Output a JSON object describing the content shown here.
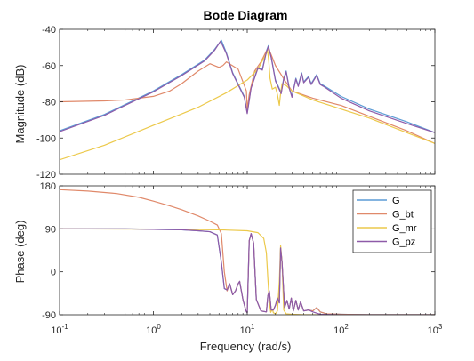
{
  "chart_data": {
    "type": "line",
    "title": "Bode Diagram",
    "xlabel": "Frequency  (rad/s)",
    "x_scale": "log",
    "xlim": [
      0.1,
      1000
    ],
    "x_ticks": [
      {
        "value": 0.1,
        "base": "10",
        "exp": "-1"
      },
      {
        "value": 1,
        "base": "10",
        "exp": "0"
      },
      {
        "value": 10,
        "base": "10",
        "exp": "1"
      },
      {
        "value": 100,
        "base": "10",
        "exp": "2"
      },
      {
        "value": 1000,
        "base": "10",
        "exp": "3"
      }
    ],
    "grid": false,
    "legend": "top-right (phase panel)",
    "series": [
      {
        "name": "G",
        "color": "#5b9bd5"
      },
      {
        "name": "G_bt",
        "color": "#e0896a"
      },
      {
        "name": "G_mr",
        "color": "#ecc94b"
      },
      {
        "name": "G_pz",
        "color": "#8e5aa8"
      }
    ],
    "panels": [
      {
        "id": "magnitude",
        "ylabel": "Magnitude (dB)",
        "ylim": [
          -120,
          -40
        ],
        "y_ticks": [
          -120,
          -100,
          -80,
          -60,
          -40
        ],
        "series": [
          {
            "name": "G",
            "x": [
              0.1,
              0.3,
              1,
              2,
              3.5,
              4.5,
              5.3,
              6,
              7,
              9.3,
              10,
              11,
              13,
              14.5,
              16,
              16.8,
              18,
              20,
              23,
              24.5,
              26,
              28,
              30,
              33,
              35,
              38,
              40,
              45,
              48,
              55,
              60,
              65,
              100,
              200,
              500,
              1000
            ],
            "y": [
              -96,
              -87,
              -74,
              -65,
              -57,
              -51,
              -46,
              -53,
              -64,
              -77,
              -86,
              -72,
              -61,
              -62,
              -52,
              -49,
              -55,
              -68,
              -75,
              -67,
              -63,
              -72,
              -77,
              -67,
              -71,
              -64,
              -69,
              -66,
              -70,
              -65,
              -70,
              -71,
              -77,
              -84,
              -91,
              -97
            ]
          },
          {
            "name": "G_bt",
            "x": [
              0.1,
              0.3,
              0.5,
              1,
              1.5,
              2,
              3,
              4,
              5,
              5.5,
              6,
              8,
              9,
              9.8,
              10,
              10.5,
              12,
              14,
              16,
              17,
              18,
              20,
              25,
              30,
              50,
              100,
              200,
              500,
              1000
            ],
            "y": [
              -80,
              -79.5,
              -79,
              -77,
              -74,
              -70,
              -63,
              -59,
              -61,
              -60,
              -58,
              -62,
              -69,
              -74,
              -84,
              -76,
              -63,
              -58,
              -52,
              -51,
              -54,
              -60,
              -68,
              -74,
              -78,
              -82,
              -88,
              -96,
              -103
            ]
          },
          {
            "name": "G_mr",
            "x": [
              0.1,
              0.3,
              1,
              3,
              6,
              10,
              13,
              15,
              16.5,
              17,
              17.5,
              18.5,
              20,
              21,
              22,
              22.5,
              23.5,
              26,
              30,
              50,
              100,
              200,
              500,
              1000
            ],
            "y": [
              -112,
              -104,
              -93,
              -83,
              -75,
              -68,
              -62,
              -56,
              -52,
              -58,
              -67,
              -73,
              -72,
              -76,
              -82,
              -77,
              -70,
              -71,
              -74,
              -79,
              -84,
              -89,
              -97,
              -103
            ]
          },
          {
            "name": "G_pz",
            "x": [
              0.1,
              0.3,
              1,
              2,
              3.5,
              4.5,
              5.2,
              6,
              7,
              9.3,
              10,
              11,
              13,
              14.5,
              16,
              16.8,
              18,
              20,
              23,
              24.5,
              26,
              28,
              30,
              33,
              35,
              38,
              40,
              45,
              48,
              55,
              60,
              65,
              100,
              200,
              500,
              1000
            ],
            "y": [
              -96.5,
              -87.5,
              -74.5,
              -65.5,
              -57.5,
              -51.5,
              -46.5,
              -53.5,
              -64.5,
              -77.5,
              -86.5,
              -72.5,
              -61.5,
              -62.5,
              -52.5,
              -49.5,
              -55.5,
              -68.5,
              -75.5,
              -67.5,
              -63.5,
              -72.5,
              -77.5,
              -67.5,
              -71.5,
              -64.5,
              -69.5,
              -66.5,
              -70.5,
              -65.5,
              -70.5,
              -71.5,
              -78,
              -85,
              -92,
              -97
            ]
          }
        ]
      },
      {
        "id": "phase",
        "ylabel": "Phase (deg)",
        "ylim": [
          -90,
          180
        ],
        "y_ticks": [
          -90,
          0,
          90,
          180
        ],
        "series": [
          {
            "name": "G",
            "x": [
              0.1,
              0.5,
              1,
              2,
              3,
              4,
              4.8,
              5.3,
              5.7,
              6.1,
              6.5,
              7,
              7.5,
              8,
              8.3,
              9,
              9.7,
              10,
              10.5,
              11,
              11.7,
              12.5,
              14,
              16,
              16.6,
              17.2,
              18,
              19,
              20,
              21,
              22,
              22.7,
              23.5,
              25,
              26.5,
              28,
              29.5,
              31,
              33,
              35,
              37,
              40,
              45,
              50,
              55,
              60,
              70,
              100,
              200,
              500,
              1000
            ],
            "y": [
              90,
              90,
              89,
              88,
              86,
              84,
              77,
              20,
              -35,
              -38,
              -25,
              -48,
              -40,
              -25,
              -20,
              -58,
              -82,
              -86,
              65,
              80,
              60,
              -58,
              -82,
              -84,
              -50,
              -40,
              -80,
              -80,
              -70,
              -55,
              -65,
              50,
              20,
              -75,
              -60,
              -78,
              -55,
              -82,
              -60,
              -80,
              -63,
              -82,
              -80,
              -82,
              -75,
              -84,
              -88,
              -89,
              -90,
              -90,
              -90
            ]
          },
          {
            "name": "G_bt",
            "x": [
              0.1,
              0.2,
              0.4,
              0.7,
              1,
              1.5,
              2,
              3,
              4,
              4.8,
              5.3,
              5.7,
              6.1,
              6.5,
              7,
              7.5,
              8,
              8.3,
              9,
              9.7,
              10,
              10.5,
              11,
              11.7,
              12.5,
              14,
              16,
              16.6,
              17.2,
              18,
              19,
              20,
              21,
              22,
              22.7,
              23.5,
              25,
              26.5,
              28,
              29.5,
              31,
              33,
              35,
              37,
              40,
              45,
              50,
              55,
              60,
              70,
              100,
              200,
              500,
              1000
            ],
            "y": [
              172,
              169,
              164,
              156,
              148,
              138,
              130,
              117,
              106,
              98,
              80,
              0,
              -40,
              -25,
              -48,
              -40,
              -25,
              -20,
              -58,
              -82,
              -86,
              65,
              80,
              60,
              -58,
              -82,
              -84,
              -50,
              -40,
              -80,
              -80,
              -70,
              -55,
              -65,
              50,
              20,
              -75,
              -60,
              -78,
              -55,
              -82,
              -60,
              -80,
              -63,
              -82,
              -80,
              -82,
              -75,
              -84,
              -88,
              -89,
              -90,
              -90,
              -90
            ]
          },
          {
            "name": "G_mr",
            "x": [
              0.1,
              1,
              5,
              10,
              13,
              15,
              16,
              16.6,
              17,
              17.4,
              17.8,
              18.5,
              19,
              20,
              21,
              22,
              22.7,
              23.5,
              24.5,
              26,
              30,
              40,
              60,
              100,
              1000
            ],
            "y": [
              90,
              89.5,
              88,
              86,
              82,
              70,
              40,
              -15,
              -45,
              -70,
              -85,
              -78,
              -86,
              -88,
              -82,
              -20,
              55,
              20,
              -80,
              -88,
              -89,
              -90,
              -90,
              -90,
              -90
            ]
          },
          {
            "name": "G_pz",
            "x": [
              0.1,
              0.5,
              1,
              2,
              3,
              4,
              4.8,
              5.3,
              5.7,
              6.1,
              6.5,
              7,
              7.5,
              8,
              8.3,
              9,
              9.7,
              10,
              10.5,
              11,
              11.7,
              12.5,
              14,
              16,
              16.6,
              17.2,
              18,
              19,
              20,
              21,
              22,
              22.7,
              23.5,
              25,
              26.5,
              28,
              29.5,
              31,
              33,
              35,
              37,
              40,
              45,
              50,
              60,
              100,
              200,
              500,
              1000
            ],
            "y": [
              90,
              90,
              89,
              88,
              86,
              84,
              77,
              20,
              -35,
              -38,
              -25,
              -48,
              -40,
              -25,
              -20,
              -58,
              -82,
              -86,
              65,
              80,
              60,
              -58,
              -82,
              -84,
              -50,
              -40,
              -80,
              -80,
              -70,
              -55,
              -65,
              50,
              20,
              -75,
              -60,
              -78,
              -55,
              -82,
              -60,
              -80,
              -63,
              -82,
              -80,
              -84,
              -89,
              -90,
              -90,
              -90,
              -90
            ]
          }
        ]
      }
    ]
  }
}
